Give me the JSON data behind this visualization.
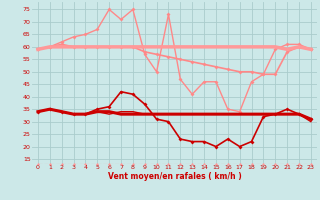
{
  "x": [
    0,
    1,
    2,
    3,
    4,
    5,
    6,
    7,
    8,
    9,
    10,
    11,
    12,
    13,
    14,
    15,
    16,
    17,
    18,
    19,
    20,
    21,
    22,
    23
  ],
  "background_color": "#cce8e8",
  "grid_color": "#aacccc",
  "xlabel": "Vent moyen/en rafales ( km/h )",
  "ylim": [
    13,
    78
  ],
  "yticks": [
    15,
    20,
    25,
    30,
    35,
    40,
    45,
    50,
    55,
    60,
    65,
    70,
    75
  ],
  "xticks": [
    0,
    1,
    2,
    3,
    4,
    5,
    6,
    7,
    8,
    9,
    10,
    11,
    12,
    13,
    14,
    15,
    16,
    17,
    18,
    19,
    20,
    21,
    22,
    23
  ],
  "line_flat_pink": {
    "y": [
      59,
      60,
      60,
      60,
      60,
      60,
      60,
      60,
      60,
      60,
      60,
      60,
      60,
      60,
      60,
      60,
      60,
      60,
      60,
      60,
      60,
      59,
      60,
      59
    ],
    "color": "#ff9999",
    "lw": 2.5
  },
  "line_descend_pink": {
    "y": [
      59,
      60,
      61,
      60,
      60,
      60,
      60,
      60,
      60,
      58,
      57,
      56,
      55,
      54,
      53,
      52,
      51,
      50,
      50,
      49,
      49,
      58,
      60,
      59
    ],
    "color": "#ff8888",
    "lw": 1.2,
    "marker": "D",
    "ms": 2.0
  },
  "line_peak_pink": {
    "y": [
      59,
      60,
      62,
      64,
      65,
      67,
      75,
      71,
      75,
      57,
      50,
      73,
      47,
      41,
      46,
      46,
      35,
      34,
      46,
      49,
      59,
      61,
      61,
      59
    ],
    "color": "#ff8888",
    "lw": 1.0,
    "marker": "D",
    "ms": 2.0
  },
  "line_flat_red": {
    "y": [
      34,
      35,
      34,
      33,
      33,
      34,
      34,
      33,
      33,
      33,
      33,
      33,
      33,
      33,
      33,
      33,
      33,
      33,
      33,
      33,
      33,
      33,
      33,
      31
    ],
    "color": "#cc0000",
    "lw": 2.2
  },
  "line_descend_red": {
    "y": [
      34,
      35,
      34,
      33,
      33,
      35,
      36,
      42,
      41,
      37,
      31,
      30,
      23,
      22,
      22,
      20,
      23,
      20,
      22,
      32,
      33,
      35,
      33,
      31
    ],
    "color": "#cc0000",
    "lw": 1.2,
    "marker": "D",
    "ms": 2.0
  },
  "line_mean_red": {
    "y": [
      34,
      35,
      34,
      33,
      33,
      34,
      33,
      34,
      34,
      33,
      33,
      33,
      33,
      33,
      33,
      33,
      33,
      33,
      33,
      33,
      33,
      33,
      33,
      30
    ],
    "color": "#cc0000",
    "lw": 1.0
  },
  "line_dashed_bottom": {
    "y": [
      13,
      13,
      13,
      13,
      13,
      13,
      13,
      13,
      13,
      13,
      13,
      13,
      13,
      13,
      13,
      13,
      13,
      13,
      13,
      13,
      13,
      13,
      13,
      13
    ],
    "color": "#ff9999",
    "lw": 0.8,
    "linestyle": "--",
    "marker": "D",
    "ms": 1.5
  }
}
